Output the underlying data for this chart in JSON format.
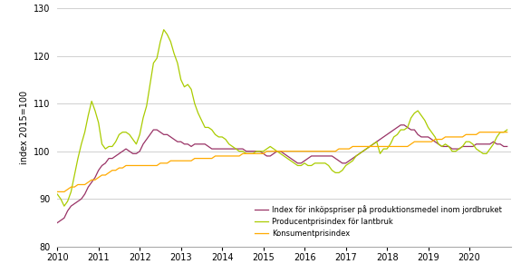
{
  "title": "",
  "ylabel": "index 2015=100",
  "ylim": [
    80,
    130
  ],
  "yticks": [
    80,
    90,
    100,
    110,
    120,
    130
  ],
  "xlim": [
    2010.0,
    2021.0
  ],
  "xticks": [
    2010,
    2011,
    2012,
    2013,
    2014,
    2015,
    2016,
    2017,
    2018,
    2019,
    2020
  ],
  "colors": {
    "purple": "#993366",
    "yellow_green": "#aacc00",
    "orange": "#ffaa00"
  },
  "legend_labels": [
    "Index för inköpspriser på produktionsmedel inom jordbruket",
    "Producentprisindex för lantbruk",
    "Konsumentprisindex"
  ],
  "background_color": "#ffffff",
  "grid_color": "#d0d0d0",
  "purple_data": [
    85.0,
    85.5,
    86.0,
    87.5,
    88.5,
    89.0,
    89.5,
    90.0,
    91.0,
    92.5,
    93.5,
    94.5,
    96.0,
    97.0,
    97.5,
    98.5,
    98.5,
    99.0,
    99.5,
    100.0,
    100.5,
    100.0,
    99.5,
    99.5,
    100.0,
    101.5,
    102.5,
    103.5,
    104.5,
    104.5,
    104.0,
    103.5,
    103.5,
    103.0,
    102.5,
    102.0,
    102.0,
    101.5,
    101.5,
    101.0,
    101.5,
    101.5,
    101.5,
    101.5,
    101.0,
    100.5,
    100.5,
    100.5,
    100.5,
    100.5,
    100.5,
    100.5,
    100.5,
    100.5,
    100.5,
    100.0,
    100.0,
    100.0,
    100.0,
    100.0,
    99.5,
    99.0,
    99.0,
    99.5,
    100.0,
    100.0,
    99.5,
    99.0,
    98.5,
    98.0,
    97.5,
    97.5,
    98.0,
    98.5,
    99.0,
    99.0,
    99.0,
    99.0,
    99.0,
    99.0,
    99.0,
    98.5,
    98.0,
    97.5,
    97.5,
    98.0,
    98.5,
    99.0,
    99.5,
    100.0,
    100.5,
    101.0,
    101.5,
    102.0,
    102.5,
    103.0,
    103.5,
    104.0,
    104.5,
    105.0,
    105.5,
    105.5,
    105.0,
    104.5,
    104.5,
    103.5,
    103.0,
    103.0,
    103.0,
    102.5,
    102.0,
    101.5,
    101.0,
    101.0,
    101.0,
    100.5,
    100.5,
    100.5,
    101.0,
    101.0,
    101.0,
    101.0,
    101.5,
    101.5,
    101.5,
    101.5,
    101.5,
    102.0,
    101.5,
    101.5,
    101.0,
    101.0
  ],
  "yg_data": [
    91.0,
    90.0,
    88.5,
    89.5,
    91.5,
    95.0,
    98.5,
    101.5,
    104.0,
    107.5,
    110.5,
    108.5,
    106.0,
    101.5,
    100.5,
    101.0,
    101.0,
    102.0,
    103.5,
    104.0,
    104.0,
    103.5,
    102.5,
    101.5,
    103.5,
    107.0,
    109.5,
    114.0,
    118.5,
    119.5,
    123.0,
    125.5,
    124.5,
    123.0,
    120.5,
    118.5,
    115.0,
    113.5,
    114.0,
    113.0,
    110.0,
    108.0,
    106.5,
    105.0,
    105.0,
    104.5,
    103.5,
    103.0,
    103.0,
    102.5,
    101.5,
    101.0,
    100.5,
    100.0,
    100.0,
    99.5,
    99.5,
    99.5,
    100.0,
    100.0,
    100.0,
    100.5,
    101.0,
    100.5,
    100.0,
    99.5,
    99.0,
    98.5,
    98.0,
    97.5,
    97.0,
    97.0,
    97.5,
    97.0,
    97.0,
    97.5,
    97.5,
    97.5,
    97.5,
    97.0,
    96.0,
    95.5,
    95.5,
    96.0,
    97.0,
    97.5,
    98.0,
    99.0,
    99.5,
    100.0,
    100.5,
    101.0,
    101.5,
    102.0,
    99.5,
    100.5,
    100.5,
    101.5,
    103.0,
    103.5,
    104.5,
    104.5,
    105.0,
    107.0,
    108.0,
    108.5,
    107.5,
    106.5,
    105.0,
    104.0,
    103.0,
    101.5,
    101.0,
    101.5,
    101.0,
    100.0,
    100.0,
    100.5,
    101.0,
    102.0,
    102.0,
    101.5,
    100.5,
    100.0,
    99.5,
    99.5,
    100.5,
    101.5,
    103.0,
    104.0,
    104.0,
    104.5
  ],
  "cpi_data": [
    91.5,
    91.5,
    91.5,
    92.0,
    92.5,
    92.5,
    93.0,
    93.0,
    93.0,
    93.5,
    94.0,
    94.0,
    94.5,
    95.0,
    95.0,
    95.5,
    96.0,
    96.0,
    96.5,
    96.5,
    97.0,
    97.0,
    97.0,
    97.0,
    97.0,
    97.0,
    97.0,
    97.0,
    97.0,
    97.0,
    97.5,
    97.5,
    97.5,
    98.0,
    98.0,
    98.0,
    98.0,
    98.0,
    98.0,
    98.0,
    98.5,
    98.5,
    98.5,
    98.5,
    98.5,
    98.5,
    99.0,
    99.0,
    99.0,
    99.0,
    99.0,
    99.0,
    99.0,
    99.0,
    99.5,
    99.5,
    99.5,
    99.5,
    99.5,
    99.5,
    99.5,
    100.0,
    100.0,
    100.0,
    100.0,
    100.0,
    100.0,
    100.0,
    100.0,
    100.0,
    100.0,
    100.0,
    100.0,
    100.0,
    100.0,
    100.0,
    100.0,
    100.0,
    100.0,
    100.0,
    100.0,
    100.0,
    100.5,
    100.5,
    100.5,
    100.5,
    101.0,
    101.0,
    101.0,
    101.0,
    101.0,
    101.0,
    101.0,
    101.0,
    101.0,
    101.0,
    101.0,
    101.0,
    101.0,
    101.0,
    101.0,
    101.0,
    101.0,
    101.5,
    102.0,
    102.0,
    102.0,
    102.0,
    102.0,
    102.0,
    102.5,
    102.5,
    102.5,
    103.0,
    103.0,
    103.0,
    103.0,
    103.0,
    103.0,
    103.5,
    103.5,
    103.5,
    103.5,
    104.0,
    104.0,
    104.0,
    104.0,
    104.0,
    104.0,
    104.0,
    104.0,
    104.0
  ]
}
